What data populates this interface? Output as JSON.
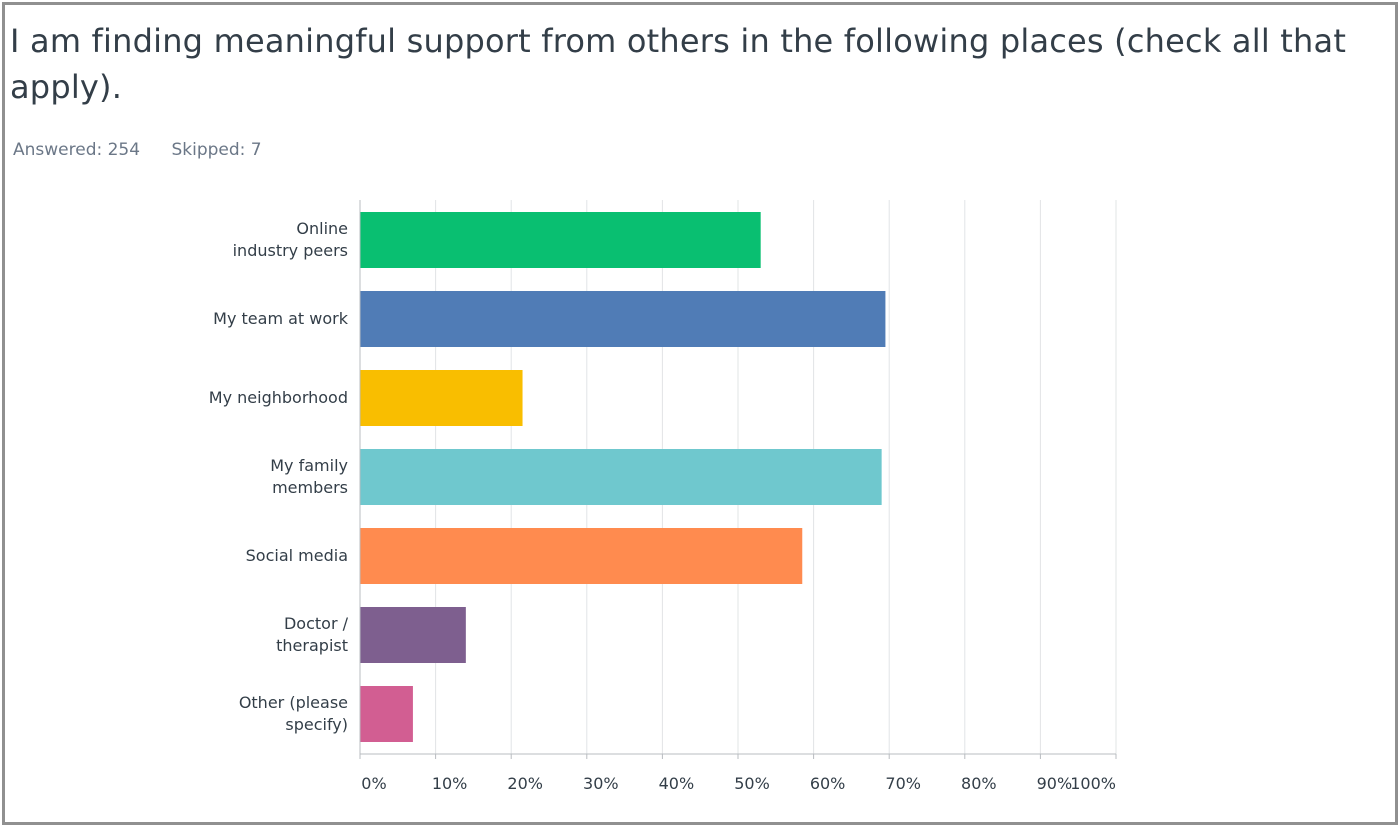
{
  "header": {
    "title": "I am finding meaningful support from others in the following places (check all that apply).",
    "answered": "Answered: 254",
    "skipped": "Skipped: 7"
  },
  "chart_data": {
    "type": "bar",
    "orientation": "horizontal",
    "title": "I am finding meaningful support from others in the following places (check all that apply).",
    "xlabel": "",
    "ylabel": "",
    "xlim": [
      0,
      100
    ],
    "grid": true,
    "categories": [
      [
        "Online",
        "industry peers"
      ],
      [
        "My team at work"
      ],
      [
        "My neighborhood"
      ],
      [
        "My family",
        "members"
      ],
      [
        "Social media"
      ],
      [
        "Doctor /",
        "therapist"
      ],
      [
        "Other (please",
        "specify)"
      ]
    ],
    "values": [
      53,
      69.5,
      21.5,
      69,
      58.5,
      14,
      7
    ],
    "colors": [
      "#09bf71",
      "#507cb6",
      "#f9be00",
      "#6fc8ce",
      "#ff8b4f",
      "#7e5f8f",
      "#d25e92"
    ],
    "ticks": [
      "0%",
      "10%",
      "20%",
      "30%",
      "40%",
      "50%",
      "60%",
      "70%",
      "80%",
      "90%",
      "100%"
    ]
  }
}
